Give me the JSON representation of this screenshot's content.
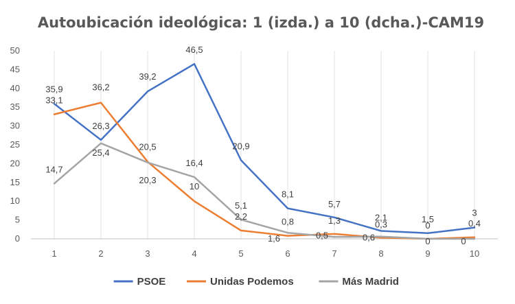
{
  "chart_data": {
    "type": "line",
    "title": "Autoubicación ideológica: 1 (izda.) a 10 (dcha.)-CAM19",
    "xlabel": "",
    "ylabel": "",
    "x": [
      "1",
      "2",
      "3",
      "4",
      "5",
      "6",
      "7",
      "8",
      "9",
      "10"
    ],
    "ylim": [
      0,
      50
    ],
    "yticks": [
      "0",
      "5",
      "10",
      "15",
      "20",
      "25",
      "30",
      "35",
      "40",
      "45",
      "50"
    ],
    "grid": "vertical",
    "legend": "bottom",
    "series": [
      {
        "name": "PSOE",
        "color": "#4472C4",
        "values": [
          35.9,
          26.3,
          39.2,
          46.5,
          20.9,
          8.1,
          5.7,
          2.1,
          1.5,
          3
        ],
        "labels": [
          "35,9",
          "26,3",
          "39,2",
          "46,5",
          "20,9",
          "8,1",
          "5,7",
          "2,1",
          "1,5",
          "3"
        ]
      },
      {
        "name": "Unidas Podemos",
        "color": "#ED7D31",
        "values": [
          33.1,
          36.2,
          20.5,
          10,
          2.2,
          0.8,
          1.3,
          0.3,
          0,
          0.4
        ],
        "labels": [
          "33,1",
          "36,2",
          "20,5",
          "10",
          "2,2",
          "0,8",
          "1,3",
          "0,3",
          "0",
          "0,4"
        ]
      },
      {
        "name": "Más Madrid",
        "color": "#A5A5A5",
        "values": [
          14.7,
          25.4,
          20.3,
          16.4,
          5.1,
          1.6,
          0.5,
          0.6,
          0,
          0
        ],
        "labels": [
          "14,7",
          "25,4",
          "20,3",
          "16,4",
          "5,1",
          "1,6",
          "0,5",
          "0,6",
          "0",
          "0"
        ]
      }
    ]
  }
}
